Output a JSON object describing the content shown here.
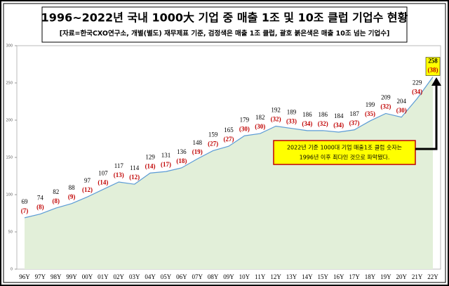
{
  "chart_data": {
    "type": "area",
    "title": "1996~2022년 국내 1000大 기업 중 매출 1조 및 10조 클럽 기업수 현황",
    "subtitle": "[자료=한국CXO연구소, 개별(별도) 재무제표 기준, 검정색은 매출 1조 클럽, 괄호 붉은색은 매출 10조 넘는 기업수]",
    "categories": [
      "96Y",
      "97Y",
      "98Y",
      "99Y",
      "00Y",
      "01Y",
      "02Y",
      "03Y",
      "04Y",
      "05Y",
      "06Y",
      "07Y",
      "08Y",
      "09Y",
      "10Y",
      "11Y",
      "12Y",
      "13Y",
      "14Y",
      "15Y",
      "16Y",
      "17Y",
      "18Y",
      "19Y",
      "20Y",
      "21Y",
      "22Y"
    ],
    "series": [
      {
        "color": "#5b9bd5",
        "fill_color": "#e2efd9",
        "values": [
          69,
          74,
          82,
          88,
          97,
          107,
          117,
          114,
          129,
          131,
          136,
          148,
          159,
          165,
          179,
          182,
          192,
          189,
          186,
          186,
          184,
          187,
          199,
          209,
          204,
          229,
          258
        ]
      },
      {
        "color": "#c00000",
        "values": [
          7,
          8,
          8,
          9,
          12,
          14,
          13,
          12,
          14,
          17,
          18,
          19,
          27,
          27,
          30,
          30,
          32,
          33,
          34,
          32,
          34,
          37,
          35,
          32,
          30,
          34,
          38
        ],
        "value_labels": [
          "(7)",
          "(8)",
          "(8)",
          "(9)",
          "(12)",
          "(14)",
          "(13)",
          "(12)",
          "(14)",
          "(17)",
          "(18)",
          "(19)",
          "(27)",
          "(27)",
          "(30)",
          "(30)",
          "(32)",
          "(33)",
          "(34)",
          "(32)",
          "(34)",
          "(37)",
          "(35)",
          "(32)",
          "(30)",
          "(34)",
          "(38)"
        ]
      }
    ],
    "highlight_color": "#ffff00",
    "annotation": [
      "2022년 기준 1000대 기업 매출1조 클럽 숫자는",
      "1996년 이후 최다인 것으로 파악됐다."
    ],
    "ylim": [
      0,
      300
    ],
    "yticks": [
      0,
      50,
      100,
      150,
      200,
      250,
      300
    ]
  }
}
